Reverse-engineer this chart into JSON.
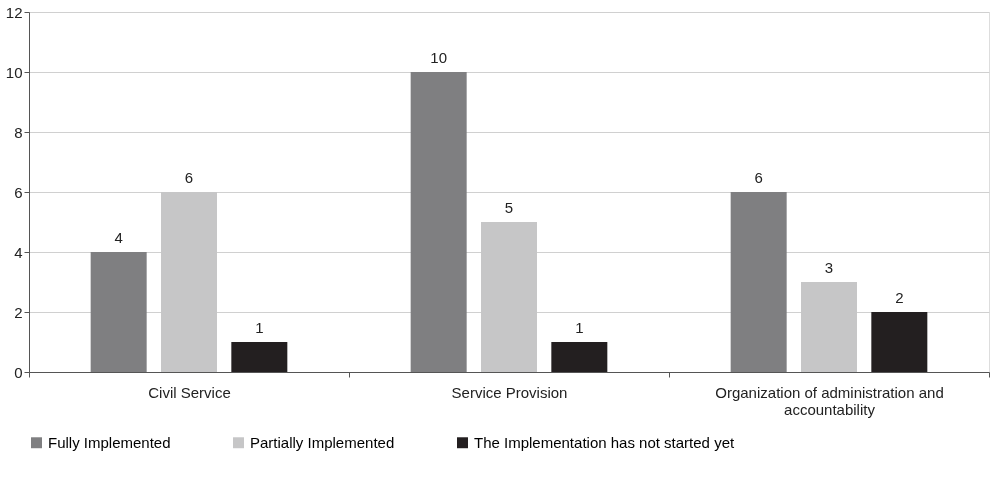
{
  "chart_data": {
    "type": "bar",
    "categories": [
      "Civil Service",
      "Service Provision",
      "Organization of administration and accountability"
    ],
    "series": [
      {
        "name": "Fully Implemented",
        "color": "#7f7f81",
        "values": [
          4,
          10,
          6
        ]
      },
      {
        "name": "Partially Implemented",
        "color": "#c6c6c7",
        "values": [
          6,
          5,
          3
        ]
      },
      {
        "name": "The Implementation has not started yet",
        "color": "#231f20",
        "values": [
          1,
          1,
          2
        ]
      }
    ],
    "ylim": [
      0,
      12
    ],
    "yticks": [
      0,
      2,
      4,
      6,
      8,
      10,
      12
    ],
    "grid": "y",
    "legend": "bottom",
    "data_labels": true
  }
}
